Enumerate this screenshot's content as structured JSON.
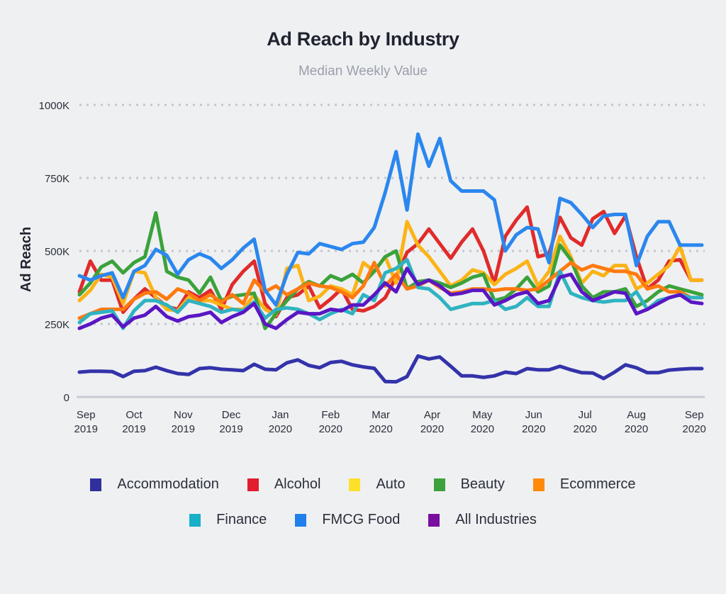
{
  "chart_data": {
    "type": "line",
    "title": "Ad Reach by Industry",
    "subtitle": "Median Weekly Value",
    "xlabel": "",
    "ylabel": "Ad Reach",
    "ylim": [
      0,
      1000000
    ],
    "yticks": [
      {
        "value": 0,
        "label": "0"
      },
      {
        "value": 250000,
        "label": "250K"
      },
      {
        "value": 500000,
        "label": "500K"
      },
      {
        "value": 750000,
        "label": "750K"
      },
      {
        "value": 1000000,
        "label": "1000K"
      }
    ],
    "xticks": [
      {
        "index": 0.6,
        "line1": "Sep",
        "line2": "2019"
      },
      {
        "index": 5.0,
        "line1": "Oct",
        "line2": "2019"
      },
      {
        "index": 9.5,
        "line1": "Nov",
        "line2": "2019"
      },
      {
        "index": 13.9,
        "line1": "Dec",
        "line2": "2019"
      },
      {
        "index": 18.4,
        "line1": "Jan",
        "line2": "2020"
      },
      {
        "index": 23.0,
        "line1": "Feb",
        "line2": "2020"
      },
      {
        "index": 27.6,
        "line1": "Mar",
        "line2": "2020"
      },
      {
        "index": 32.3,
        "line1": "Apr",
        "line2": "2020"
      },
      {
        "index": 36.9,
        "line1": "May",
        "line2": "2020"
      },
      {
        "index": 41.6,
        "line1": "Jun",
        "line2": "2020"
      },
      {
        "index": 46.3,
        "line1": "Jul",
        "line2": "2020"
      },
      {
        "index": 51.0,
        "line1": "Aug",
        "line2": "2020"
      },
      {
        "index": 56.3,
        "line1": "Sep",
        "line2": "2020"
      }
    ],
    "grid": true,
    "legend_position": "bottom",
    "x_count": 58,
    "series": [
      {
        "name": "Accommodation",
        "color": "#3333aa",
        "values": [
          85,
          88,
          88,
          87,
          70,
          88,
          90,
          102,
          90,
          80,
          77,
          97,
          100,
          95,
          93,
          90,
          112,
          95,
          93,
          117,
          127,
          108,
          100,
          118,
          122,
          110,
          103,
          98,
          53,
          52,
          70,
          140,
          130,
          137,
          105,
          72,
          72,
          67,
          72,
          85,
          80,
          97,
          93,
          93,
          105,
          93,
          83,
          82,
          63,
          85,
          110,
          100,
          83,
          83,
          92,
          95,
          97,
          97
        ]
      },
      {
        "name": "Alcohol",
        "color": "#e02b2b",
        "values": [
          360,
          465,
          400,
          400,
          290,
          335,
          370,
          340,
          310,
          300,
          360,
          340,
          365,
          300,
          385,
          430,
          465,
          320,
          275,
          340,
          350,
          380,
          305,
          335,
          370,
          300,
          295,
          310,
          340,
          410,
          495,
          525,
          575,
          525,
          475,
          530,
          575,
          500,
          390,
          550,
          605,
          650,
          480,
          490,
          615,
          545,
          520,
          610,
          635,
          560,
          620,
          480,
          370,
          400,
          465,
          470,
          400,
          400
        ]
      },
      {
        "name": "Auto",
        "color": "#fbb316",
        "values": [
          330,
          365,
          420,
          410,
          320,
          430,
          425,
          340,
          300,
          295,
          340,
          330,
          330,
          315,
          300,
          300,
          350,
          300,
          280,
          440,
          450,
          330,
          345,
          380,
          370,
          350,
          460,
          430,
          480,
          390,
          600,
          520,
          480,
          430,
          380,
          400,
          435,
          425,
          385,
          420,
          440,
          465,
          380,
          430,
          550,
          480,
          390,
          430,
          415,
          450,
          450,
          370,
          390,
          420,
          450,
          515,
          400,
          400
        ]
      },
      {
        "name": "Beauty",
        "color": "#3ba23b",
        "values": [
          350,
          390,
          445,
          465,
          425,
          460,
          480,
          630,
          430,
          410,
          400,
          355,
          410,
          330,
          345,
          350,
          355,
          235,
          285,
          330,
          370,
          395,
          380,
          415,
          400,
          420,
          390,
          430,
          480,
          500,
          370,
          395,
          400,
          390,
          375,
          390,
          410,
          420,
          330,
          340,
          370,
          410,
          360,
          380,
          520,
          470,
          380,
          340,
          360,
          360,
          370,
          310,
          330,
          360,
          380,
          370,
          360,
          350
        ]
      },
      {
        "name": "Ecommerce",
        "color": "#ff7a0f",
        "values": [
          270,
          285,
          300,
          300,
          300,
          335,
          355,
          360,
          335,
          370,
          355,
          330,
          350,
          325,
          350,
          320,
          400,
          360,
          380,
          350,
          370,
          390,
          380,
          375,
          360,
          340,
          380,
          460,
          380,
          420,
          370,
          380,
          400,
          375,
          355,
          360,
          370,
          370,
          365,
          370,
          370,
          365,
          370,
          400,
          430,
          460,
          435,
          450,
          440,
          430,
          430,
          420,
          370,
          380,
          360,
          360,
          340,
          340
        ]
      },
      {
        "name": "Finance",
        "color": "#2fb3c1",
        "values": [
          255,
          285,
          290,
          295,
          235,
          295,
          330,
          330,
          315,
          290,
          330,
          320,
          310,
          290,
          300,
          295,
          325,
          270,
          300,
          305,
          300,
          285,
          265,
          285,
          300,
          285,
          350,
          330,
          425,
          440,
          470,
          375,
          370,
          340,
          300,
          310,
          320,
          320,
          330,
          300,
          310,
          340,
          310,
          310,
          430,
          355,
          340,
          330,
          325,
          330,
          330,
          360,
          300,
          330,
          340,
          350,
          340,
          340
        ]
      },
      {
        "name": "FMCG Food",
        "color": "#2b87ee",
        "values": [
          415,
          400,
          415,
          425,
          340,
          430,
          450,
          505,
          485,
          420,
          470,
          490,
          475,
          440,
          470,
          510,
          540,
          365,
          315,
          420,
          495,
          490,
          525,
          515,
          505,
          525,
          530,
          580,
          700,
          840,
          640,
          900,
          790,
          885,
          740,
          705,
          705,
          705,
          675,
          500,
          555,
          580,
          575,
          460,
          680,
          665,
          625,
          580,
          620,
          625,
          625,
          450,
          550,
          600,
          600,
          520,
          520,
          520
        ]
      },
      {
        "name": "All Industries",
        "color": "#5a16c4",
        "values": [
          235,
          250,
          270,
          280,
          240,
          270,
          280,
          310,
          275,
          260,
          275,
          280,
          290,
          255,
          275,
          290,
          320,
          250,
          235,
          265,
          290,
          285,
          285,
          300,
          295,
          315,
          315,
          350,
          390,
          360,
          440,
          385,
          400,
          380,
          350,
          355,
          365,
          365,
          315,
          330,
          350,
          360,
          320,
          330,
          410,
          420,
          360,
          330,
          345,
          360,
          355,
          285,
          300,
          320,
          340,
          350,
          325,
          320
        ]
      }
    ]
  },
  "legend": {
    "items": [
      {
        "label": "Accommodation",
        "color": "#30309c"
      },
      {
        "label": "Alcohol",
        "color": "#e11d2e"
      },
      {
        "label": "Auto",
        "color": "#fde02a"
      },
      {
        "label": "Beauty",
        "color": "#3ba23b"
      },
      {
        "label": "Ecommerce",
        "color": "#ff8a0a"
      },
      {
        "label": "Finance",
        "color": "#17b0c8"
      },
      {
        "label": "FMCG Food",
        "color": "#1f80ec"
      },
      {
        "label": "All Industries",
        "color": "#7a0ea0"
      }
    ]
  }
}
